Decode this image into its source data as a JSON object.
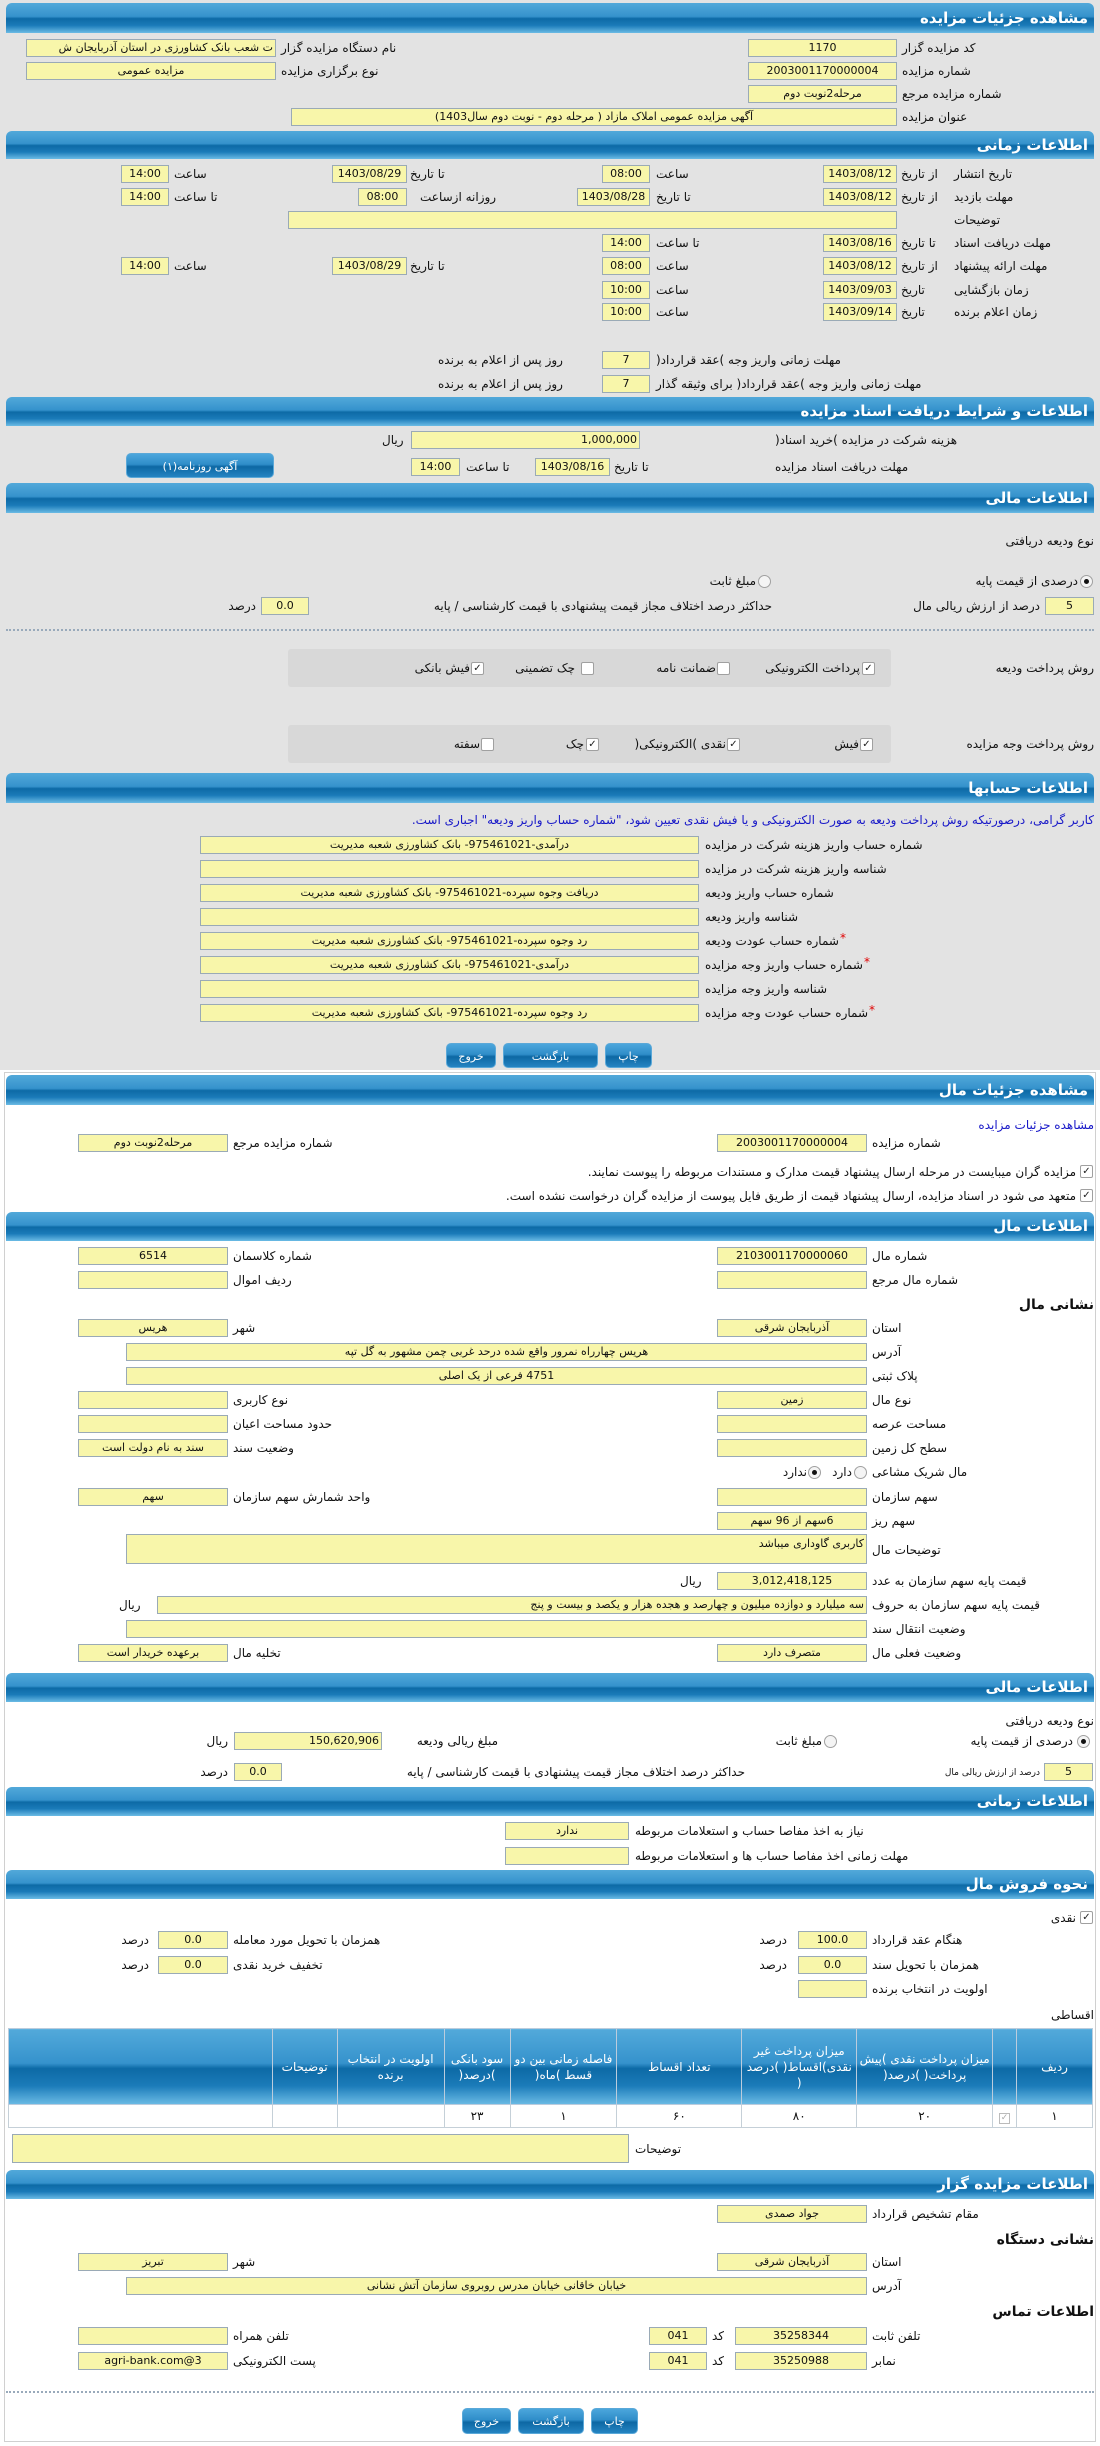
{
  "colors": {
    "header": "#0d6aa6",
    "field": "#f8f6aa",
    "notice": "#1818c8",
    "required": "#e00000"
  },
  "s1": {
    "title": "مشاهده جزئیات مزایده",
    "code_label": "کد مزایده گزار",
    "code": "1170",
    "number_label": "شماره مزایده",
    "number": "2003001170000004",
    "ref_label": "شماره مزایده مرجع",
    "ref": "مرحله2نوبت دوم",
    "subject_label": "عنوان مزایده",
    "subject": "آگهی مزایده عمومی املاک مازاد ( مرحله دوم - نوبت دوم سال1403)",
    "org_label": "نام دستگاه مزایده گزار",
    "org": "ت شعب بانک کشاورزی در استان آذربایجان ش",
    "type_label": "نوع برگزاری مزایده",
    "type": "مزایده عمومی"
  },
  "s2": {
    "title": "اطلاعات زمانی",
    "publish": {
      "label": "تاریخ انتشار",
      "from_label": "از تاریخ",
      "from": "1403/08/12",
      "time_label": "ساعت",
      "time": "08:00",
      "to_label": "تا تاریخ",
      "to": "1403/08/29",
      "time2_label": "ساعت",
      "time2": "14:00"
    },
    "visit": {
      "label": "مهلت بازدید",
      "from_label": "از تاریخ",
      "from": "1403/08/12",
      "to_label": "تا تاریخ",
      "to": "1403/08/28",
      "daily_label": "روزانه ازساعت",
      "daily_from": "08:00",
      "until_label": "تا ساعت",
      "daily_to": "14:00"
    },
    "desc_label": "توضیحات",
    "desc": "",
    "docs": {
      "label": "مهلت دریافت اسناد",
      "to_label": "تا تاریخ",
      "to": "1403/08/16",
      "time_label": "تا ساعت",
      "time": "14:00"
    },
    "offer": {
      "label": "مهلت ارائه پیشنهاد",
      "from_label": "از تاریخ",
      "from": "1403/08/12",
      "time_label": "ساعت",
      "time": "08:00",
      "to_label": "تا تاریخ",
      "to": "1403/08/29",
      "time2_label": "ساعت",
      "time2": "14:00"
    },
    "opening": {
      "label": "زمان بازگشایی",
      "date_label": "تاریخ",
      "date": "1403/09/03",
      "time_label": "ساعت",
      "time": "10:00"
    },
    "winner": {
      "label": "زمان اعلام برنده",
      "date_label": "تاریخ",
      "date": "1403/09/14",
      "time_label": "ساعت",
      "time": "10:00"
    },
    "pay": {
      "label": "مهلت زمانی واریز وجه )عقد قرارداد(",
      "value": "7",
      "suffix": "روز پس از اعلام به برنده"
    },
    "pay2": {
      "label": "مهلت زمانی واریز وجه )عقد قرارداد( برای وثیقه گذار",
      "value": "7",
      "suffix": "روز پس از اعلام به برنده"
    }
  },
  "s3": {
    "title": "اطلاعات و شرایط دریافت اسناد مزایده",
    "fee_label": "هزینه شرکت در مزایده )خرید اسناد(",
    "fee": "1,000,000",
    "fee_unit": "ریال",
    "deadline_label": "مهلت دریافت اسناد مزایده",
    "to_label": "تا تاریخ",
    "to": "1403/08/16",
    "time_label": "تا ساعت",
    "time": "14:00",
    "ad_button": "آگهی روزنامه(۱)"
  },
  "s4": {
    "title": "اطلاعات مالی",
    "deposit_type_label": "نوع ودیعه دریافتی",
    "opt_percent": "درصدی از قیمت پایه",
    "opt_fixed": "مبلغ ثابت",
    "selected": "percent",
    "percent": "5",
    "percent_label": "درصد از ارزش ریالی مال",
    "maxdiff_label": "حداکثر درصد اختلاف مجاز قیمت پیشنهادی با قیمت کارشناسی / پایه",
    "maxdiff": "0.0",
    "maxdiff_unit": "درصد",
    "deposit_method_label": "روش پرداخت ودیعه",
    "deposit_methods": [
      {
        "label": "پرداخت الکترونیکی",
        "checked": true
      },
      {
        "label": "ضمانت نامه",
        "checked": false
      },
      {
        "label": "چک تضمینی",
        "checked": false
      },
      {
        "label": "فیش بانکی",
        "checked": true
      }
    ],
    "payment_method_label": "روش پرداخت وجه مزایده",
    "payment_methods": [
      {
        "label": "فیش",
        "checked": true
      },
      {
        "label": "نقدی )الکترونیکی(",
        "checked": true
      },
      {
        "label": "چک",
        "checked": true
      },
      {
        "label": "سفته",
        "checked": false
      }
    ]
  },
  "s5": {
    "title": "اطلاعات حسابها",
    "notice": "کاربر گرامی، درصورتیکه روش پرداخت ودیعه به صورت الکترونیکی و یا فیش نقدی تعیین شود، \"شماره حساب واریز ودیعه\" اجباری است.",
    "rows": [
      {
        "label": "شماره حساب واریز هزینه شرکت در مزایده",
        "value": "درآمدی-975461021- بانک کشاورزی شعبه مدیریت",
        "required": false
      },
      {
        "label": "شناسه واریز هزینه شرکت در مزایده",
        "value": "",
        "required": false
      },
      {
        "label": "شماره حساب واریز ودیعه",
        "value": "دریافت وجوه سپرده-975461021- بانک کشاورزی شعبه مدیریت",
        "required": false
      },
      {
        "label": "شناسه واریز ودیعه",
        "value": "",
        "required": false
      },
      {
        "label": "شماره حساب عودت ودیعه",
        "value": "رد وجوه سپرده-975461021- بانک کشاورزی شعبه مدیریت",
        "required": true
      },
      {
        "label": "شماره حساب واریز وجه مزایده",
        "value": "درآمدی-975461021- بانک کشاورزی شعبه مدیریت",
        "required": true
      },
      {
        "label": "شناسه واریز وجه مزایده",
        "value": "",
        "required": false
      },
      {
        "label": "شماره حساب عودت وجه مزایده",
        "value": "رد وجوه سپرده-975461021- بانک کشاورزی شعبه مدیریت",
        "required": true
      }
    ],
    "required_mark": "*",
    "print": "چاپ",
    "back": "بازگشت",
    "exit": "خروج"
  },
  "s6": {
    "title": "مشاهده جزئیات مال",
    "link": "مشاهده جزئیات مزایده",
    "number_label": "شماره مزایده",
    "number": "2003001170000004",
    "ref_label": "شماره مزایده مرجع",
    "ref": "مرحله2نوبت دوم",
    "check1": "مزایده گران میبایست در مرحله ارسال پیشنهاد قیمت مدارک و مستندات مربوطه را پیوست نمایند.",
    "check2": "متعهد می شود در اسناد مزایده، ارسال پیشنهاد قیمت از طریق فایل پیوست از مزایده گران درخواست نشده است."
  },
  "s7": {
    "title": "اطلاعات مال",
    "item_no_label": "شماره مال",
    "item_no": "2103001170000060",
    "class_label": "شماره کلاسمان",
    "class_no": "6514",
    "ref_item_label": "شماره مال مرجع",
    "ref_item": "",
    "row_label": "ردیف اموال",
    "row": "",
    "address_title": "نشانی مال",
    "province_label": "استان",
    "province": "آذربایجان شرقی",
    "city_label": "شهر",
    "city": "هریس",
    "address_label": "آدرس",
    "address": "هریس چهارراه نمرور واقع شده درحد غربی چمن مشهور به گل تپه",
    "plate_label": "پلاک ثبتی",
    "plate": "4751 فرعی از یک اصلی",
    "type_label": "نوع مال",
    "type": "زمین",
    "usage_label": "نوع کاربری",
    "usage": "",
    "area_label": "مساحت عرصه",
    "area": "",
    "building_label": "حدود مساحت اعیان",
    "building": "",
    "land_label": "سطح کل زمین",
    "land": "",
    "deed_label": "وضعیت سند",
    "deed": "سند به نام دولت است",
    "shared_label": "مال شریک مشاعی",
    "shared_yes": "دارد",
    "shared_no": "ندارد",
    "shared": "no",
    "share_label": "سهم سازمان",
    "share": "",
    "unit_label": "واحد شمارش سهم سازمان",
    "unit": "سهم",
    "subshare_label": "سهم ریز",
    "subshare": "6سهم از 96 سهم",
    "desc_label": "توضیحات مال",
    "desc": "کاربری گاوداری میباشد",
    "price_label": "قیمت پایه سهم سازمان به عدد",
    "price": "3,012,418,125",
    "price_unit": "ریال",
    "words_label": "قیمت پایه سهم سازمان به حروف",
    "words": "سه میلیارد و دوازده میلیون و چهارصد و هجده هزار و یکصد و بیست و پنج",
    "words_unit": "ریال",
    "transfer_label": "وضعیت انتقال سند",
    "transfer": "",
    "status_label": "وضعیت فعلی مال",
    "status": "متصرف دارد",
    "evac_label": "تخلیه مال",
    "evac": "برعهده خریدار است"
  },
  "s8": {
    "title": "اطلاعات مالی",
    "deposit_type_label": "نوع ودیعه دریافتی",
    "opt_percent": "درصدی از قیمت پایه",
    "opt_fixed": "مبلغ ثابت",
    "selected": "percent",
    "amount_label": "مبلغ ریالی ودیعه",
    "amount": "150,620,906",
    "amount_unit": "ریال",
    "percent": "5",
    "percent_label": "درصد از ارزش ریالی مال",
    "maxdiff_label": "حداکثر درصد اختلاف مجاز قیمت پیشنهادی با قیمت کارشناسی / پایه",
    "maxdiff": "0.0",
    "maxdiff_unit": "درصد"
  },
  "s9": {
    "title": "اطلاعات زمانی",
    "clear_label": "نیاز به اخذ مفاصا حساب و استعلامات مربوطه",
    "clear": "ندارد",
    "clear_deadline_label": "مهلت زمانی اخذ مفاصا حساب ها و استعلامات مربوطه",
    "clear_deadline": ""
  },
  "s10": {
    "title": "نحوه فروش مال",
    "cash_label": "نقدی",
    "cash": true,
    "contract_label": "هنگام عقد قرارداد",
    "contract": "100.0",
    "delivery_label": "همزمان با تحویل مورد معامله",
    "delivery": "0.0",
    "deed_label": "همزمان با تحویل سند",
    "deed": "0.0",
    "discount_label": "تخفیف خرید نقدی",
    "discount": "0.0",
    "unit": "درصد",
    "priority_label": "اولویت در انتخاب برنده",
    "priority": "",
    "installments_label": "اقساطی",
    "columns": [
      "ردیف",
      "",
      "میزان پرداخت نقدی )پیش پرداخت( )درصد(",
      "میزان پرداخت غیر نقدی)اقساط( )درصد (",
      "تعداد اقساط",
      "فاصله زمانی بین دو قسط )ماه(",
      "سود بانکی )درصد(",
      "اولویت در انتخاب برنده",
      "توضیحات",
      ""
    ],
    "rows": [
      [
        "۱",
        "",
        "۲۰",
        "۸۰",
        "۶۰",
        "۱",
        "۲۳",
        "",
        "",
        ""
      ]
    ],
    "desc_label": "توضیحات",
    "desc": ""
  },
  "s11": {
    "title": "اطلاعات مزایده گزار",
    "authority_label": "مقام تشخیص قرارداد",
    "authority": "جواد صمدی",
    "address_title": "نشانی دستگاه",
    "province_label": "استان",
    "province": "آذربایجان شرقی",
    "city_label": "شهر",
    "city": "تبریز",
    "address_label": "آدرس",
    "address": "خیابان خاقانی خیابان مدرس روبروی سازمان آتش نشانی",
    "contact_title": "اطلاعات تماس",
    "phone_label": "تلفن ثابت",
    "phone": "35258344",
    "code_label": "کد",
    "phone_code": "041",
    "fax_label": "نمابر",
    "fax": "35250988",
    "fax_code": "041",
    "mobile_label": "تلفن همراه",
    "mobile": "",
    "email_label": "پست الکترونیکی",
    "email": "agri-bank.com@3",
    "print": "چاپ",
    "back": "بازگشت",
    "exit": "خروج"
  }
}
